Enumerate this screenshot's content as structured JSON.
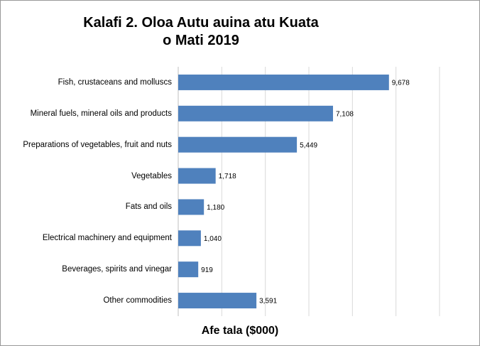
{
  "chart_data": {
    "type": "bar",
    "orientation": "horizontal",
    "title": "Kalafi 2. Oloa Autu auina atu Kuata o Mati 2019",
    "x_label": "Afe tala ($000)",
    "categories": [
      "Fish, crustaceans and molluscs",
      "Mineral fuels, mineral oils and products",
      "Preparations of vegetables, fruit and nuts",
      "Vegetables",
      "Fats and oils",
      "Electrical machinery and equipment",
      "Beverages, spirits and vinegar",
      "Other commodities"
    ],
    "values": [
      9678,
      7108,
      5449,
      1718,
      1180,
      1040,
      919,
      3591
    ],
    "value_labels": [
      "9,678",
      "7,108",
      "5,449",
      "1,718",
      "1,180",
      "1,040",
      "919",
      "3,591"
    ],
    "color": "#4f81bd",
    "xlim": [
      0,
      12000
    ],
    "xticks": [
      0,
      2000,
      4000,
      6000,
      8000,
      10000,
      12000
    ],
    "grid": true
  }
}
